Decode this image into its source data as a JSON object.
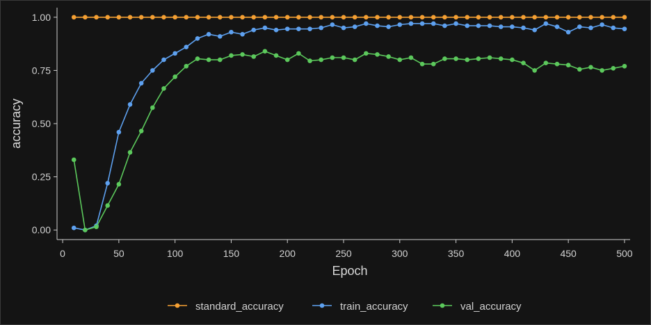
{
  "chart_data": {
    "type": "line",
    "title": "",
    "xlabel": "Epoch",
    "ylabel": "accuracy",
    "xlim": [
      -5,
      505
    ],
    "ylim": [
      -0.045,
      1.045
    ],
    "x_ticks": [
      0,
      50,
      100,
      150,
      200,
      250,
      300,
      350,
      400,
      450,
      500
    ],
    "y_ticks": [
      0.0,
      0.25,
      0.5,
      0.75,
      1.0
    ],
    "x_tick_labels": [
      "0",
      "50",
      "100",
      "150",
      "200",
      "250",
      "300",
      "350",
      "400",
      "450",
      "500"
    ],
    "y_tick_labels": [
      "0.00",
      "0.25",
      "0.50",
      "0.75",
      "1.00"
    ],
    "grid": false,
    "legend_position": "bottom",
    "x": [
      10,
      20,
      30,
      40,
      50,
      60,
      70,
      80,
      90,
      100,
      110,
      120,
      130,
      140,
      150,
      160,
      170,
      180,
      190,
      200,
      210,
      220,
      230,
      240,
      250,
      260,
      270,
      280,
      290,
      300,
      310,
      320,
      330,
      340,
      350,
      360,
      370,
      380,
      390,
      400,
      410,
      420,
      430,
      440,
      450,
      460,
      470,
      480,
      490,
      500
    ],
    "series": [
      {
        "name": "standard_accuracy",
        "color": "#f5a033",
        "values": [
          1.0,
          1.0,
          1.0,
          1.0,
          1.0,
          1.0,
          1.0,
          1.0,
          1.0,
          1.0,
          1.0,
          1.0,
          1.0,
          1.0,
          1.0,
          1.0,
          1.0,
          1.0,
          1.0,
          1.0,
          1.0,
          1.0,
          1.0,
          1.0,
          1.0,
          1.0,
          1.0,
          1.0,
          1.0,
          1.0,
          1.0,
          1.0,
          1.0,
          1.0,
          1.0,
          1.0,
          1.0,
          1.0,
          1.0,
          1.0,
          1.0,
          1.0,
          1.0,
          1.0,
          1.0,
          1.0,
          1.0,
          1.0,
          1.0,
          1.0
        ]
      },
      {
        "name": "train_accuracy",
        "color": "#5ea1f0",
        "values": [
          0.01,
          0.0,
          0.02,
          0.22,
          0.46,
          0.59,
          0.69,
          0.75,
          0.8,
          0.83,
          0.86,
          0.9,
          0.92,
          0.91,
          0.93,
          0.92,
          0.94,
          0.95,
          0.94,
          0.945,
          0.945,
          0.945,
          0.95,
          0.965,
          0.95,
          0.955,
          0.97,
          0.96,
          0.955,
          0.965,
          0.97,
          0.97,
          0.97,
          0.96,
          0.97,
          0.96,
          0.96,
          0.96,
          0.955,
          0.955,
          0.95,
          0.94,
          0.97,
          0.955,
          0.93,
          0.955,
          0.95,
          0.965,
          0.95,
          0.945
        ]
      },
      {
        "name": "val_accuracy",
        "color": "#5cc95c",
        "values": [
          0.33,
          0.0,
          0.015,
          0.115,
          0.215,
          0.365,
          0.465,
          0.575,
          0.665,
          0.72,
          0.77,
          0.805,
          0.8,
          0.8,
          0.82,
          0.825,
          0.815,
          0.84,
          0.82,
          0.8,
          0.83,
          0.795,
          0.8,
          0.81,
          0.81,
          0.8,
          0.83,
          0.825,
          0.815,
          0.8,
          0.81,
          0.78,
          0.78,
          0.805,
          0.805,
          0.8,
          0.805,
          0.81,
          0.805,
          0.8,
          0.785,
          0.75,
          0.785,
          0.78,
          0.775,
          0.755,
          0.765,
          0.75,
          0.76,
          0.77
        ]
      }
    ]
  },
  "colors": {
    "background": "#141414",
    "axis": "#cfcfcf",
    "text": "#d2d2d2"
  }
}
